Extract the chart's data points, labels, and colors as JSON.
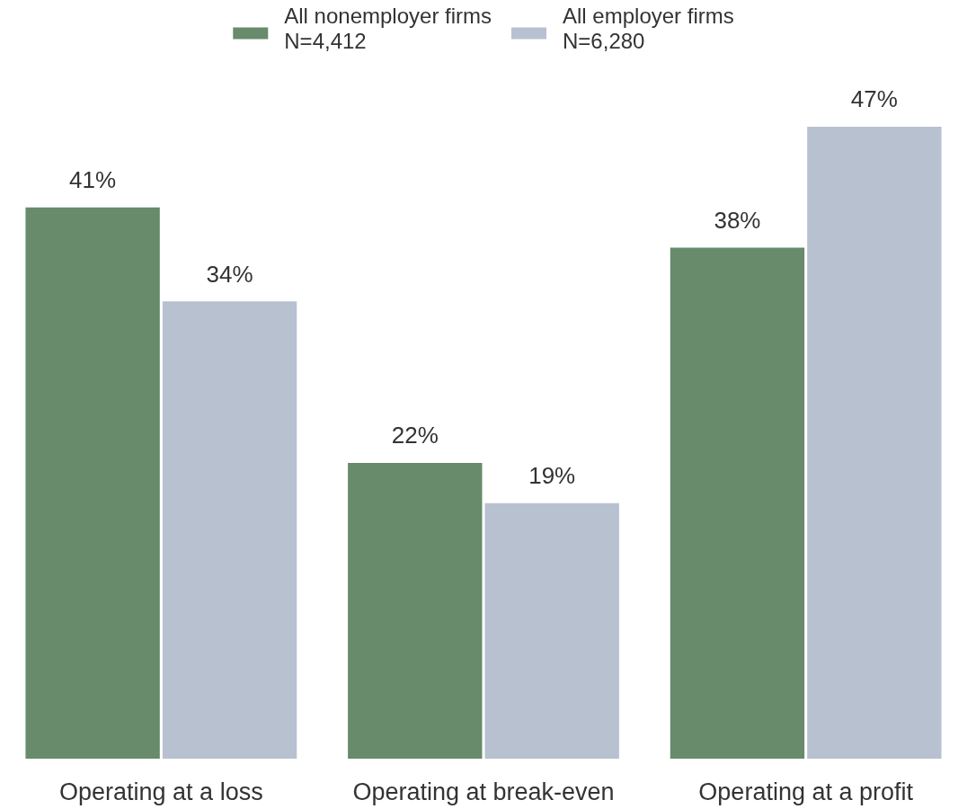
{
  "chart_data": {
    "type": "bar",
    "categories": [
      "Operating at a loss",
      "Operating at break-even",
      "Operating at a profit"
    ],
    "series": [
      {
        "name": "All nonemployer firms\nN=4,412",
        "color": "#678b6b",
        "values": [
          41,
          22,
          38
        ],
        "value_labels": [
          "41%",
          "22%",
          "38%"
        ]
      },
      {
        "name": "All employer firms\nN=6,280",
        "color": "#b8c1d0",
        "values": [
          34,
          19,
          47
        ],
        "value_labels": [
          "34%",
          "19%",
          "47%"
        ]
      }
    ],
    "legend": "top"
  }
}
